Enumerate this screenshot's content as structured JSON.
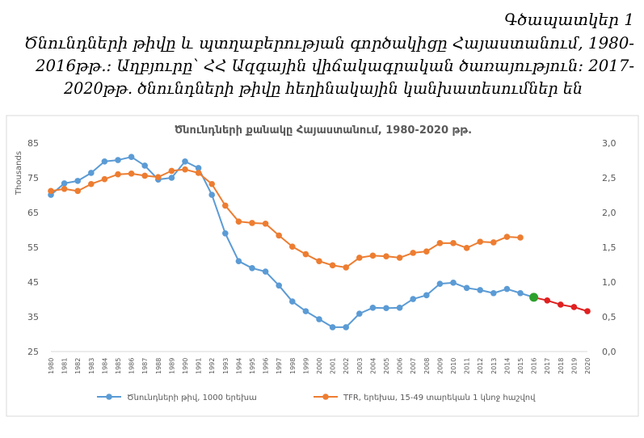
{
  "figure_label": "Գծապատկեր 1",
  "caption": [
    "Ծնունդների թիվը և պտղաբերության գործակիցը Հայաստանում, 1980-",
    "2016թթ.: Աղբյուրը՝ ՀՀ Ազգային վիճակագրական ծառայություն: 2017-",
    "2020թթ. ծնունդների թիվը հեղինակային կանխատեսումներ են"
  ],
  "chart_data": {
    "type": "line",
    "title": "Ծնունդների քանակը Հայաստանում, 1980-2020 թթ.",
    "y_axis_label": "Thousands",
    "categories": [
      "1980",
      "1981",
      "1982",
      "1983",
      "1984",
      "1985",
      "1986",
      "1987",
      "1988",
      "1989",
      "1990",
      "1991",
      "1992",
      "1993",
      "1994",
      "1995",
      "1996",
      "1997",
      "1998",
      "1999",
      "2000",
      "2001",
      "2002",
      "2003",
      "2004",
      "2005",
      "2006",
      "2007",
      "2008",
      "2009",
      "2010",
      "2011",
      "2012",
      "2013",
      "2014",
      "2015",
      "2016",
      "2017",
      "2018",
      "2019",
      "2020"
    ],
    "ylim": [
      25,
      85
    ],
    "yticks": [
      25,
      35,
      45,
      55,
      65,
      75,
      85
    ],
    "y2lim": [
      0,
      3
    ],
    "y2ticks": [
      {
        "value": 0,
        "label": "0,0"
      },
      {
        "value": 0.5,
        "label": "0,5"
      },
      {
        "value": 1,
        "label": "1,0"
      },
      {
        "value": 1.5,
        "label": "1,5"
      },
      {
        "value": 2,
        "label": "2,0"
      },
      {
        "value": 2.5,
        "label": "2,5"
      },
      {
        "value": 3,
        "label": "3,0"
      }
    ],
    "grid": false,
    "legend": "bottom",
    "series": [
      {
        "name": "Ծնունդների թիվ, 1000 երեխա",
        "color": "#5b9bd5",
        "values": [
          70.1,
          73.4,
          74.1,
          76.4,
          79.7,
          80.1,
          81.0,
          78.5,
          74.5,
          75.0,
          79.7,
          77.8,
          70.1,
          59.0,
          51.0,
          49.0,
          48.0,
          44.0,
          39.4,
          36.6,
          34.3,
          32.0,
          32.0,
          35.9,
          37.6,
          37.5,
          37.6,
          40.1,
          41.2,
          44.5,
          44.8,
          43.3,
          42.7,
          41.8,
          43.0,
          41.8,
          40.6,
          39.7,
          38.5,
          37.8,
          36.6
        ],
        "point_colors": [
          "#5b9bd5",
          "#5b9bd5",
          "#5b9bd5",
          "#5b9bd5",
          "#5b9bd5",
          "#5b9bd5",
          "#5b9bd5",
          "#5b9bd5",
          "#5b9bd5",
          "#5b9bd5",
          "#5b9bd5",
          "#5b9bd5",
          "#5b9bd5",
          "#5b9bd5",
          "#5b9bd5",
          "#5b9bd5",
          "#5b9bd5",
          "#5b9bd5",
          "#5b9bd5",
          "#5b9bd5",
          "#5b9bd5",
          "#5b9bd5",
          "#5b9bd5",
          "#5b9bd5",
          "#5b9bd5",
          "#5b9bd5",
          "#5b9bd5",
          "#5b9bd5",
          "#5b9bd5",
          "#5b9bd5",
          "#5b9bd5",
          "#5b9bd5",
          "#5b9bd5",
          "#5b9bd5",
          "#5b9bd5",
          "#5b9bd5",
          "#2ca02c",
          "#e02020",
          "#e02020",
          "#e02020",
          "#e02020"
        ]
      },
      {
        "name": "TFR, երեխա, 15-49 տարեկան 1 կնոջ հաշվով",
        "color": "#ed7d31",
        "axis": "y2",
        "values": [
          2.31,
          2.34,
          2.31,
          2.41,
          2.48,
          2.55,
          2.56,
          2.53,
          2.51,
          2.6,
          2.62,
          2.57,
          2.41,
          2.1,
          1.87,
          1.85,
          1.84,
          1.67,
          1.51,
          1.4,
          1.3,
          1.24,
          1.21,
          1.35,
          1.38,
          1.37,
          1.35,
          1.42,
          1.44,
          1.56,
          1.56,
          1.49,
          1.58,
          1.57,
          1.65,
          1.64,
          null,
          null,
          null,
          null,
          null
        ]
      }
    ]
  }
}
